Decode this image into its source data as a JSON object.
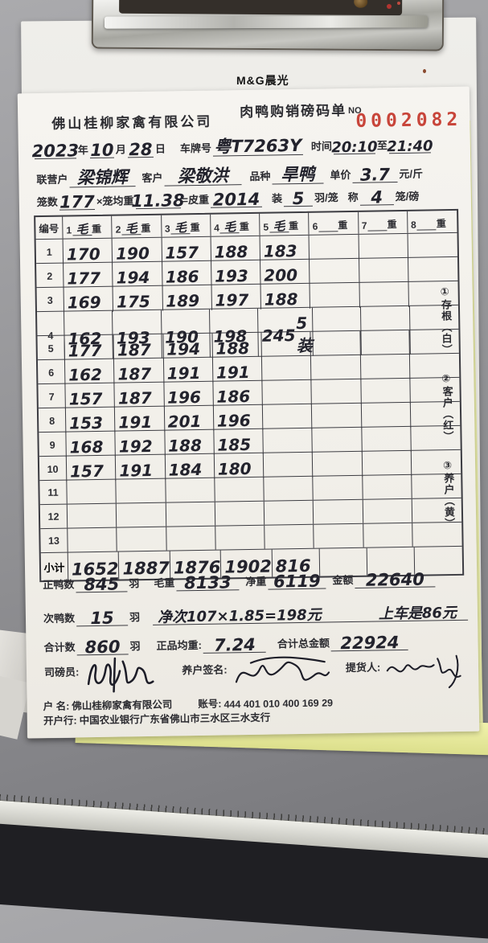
{
  "brand": {
    "text": "M&G晨光"
  },
  "header": {
    "company": "佛山桂柳家禽有限公司",
    "title": "肉鸭购销磅码单",
    "no_label": "NO",
    "serial": "0002082",
    "serial_color": "#c8453a"
  },
  "date": {
    "year": "2023",
    "year_label": "年",
    "month": "10",
    "month_label": "月",
    "day": "28",
    "day_label": "日",
    "plate_label": "车牌号",
    "plate": "粤T7263Y",
    "time_label": "时间",
    "time_from": "20:10",
    "to_label": "至",
    "time_to": "21:40"
  },
  "party": {
    "partner_label": "联营户",
    "partner": "梁锦辉",
    "customer_label": "客户",
    "customer": "梁敬洪",
    "breed_label": "品种",
    "breed": "旱鸭",
    "price_label": "单价",
    "price": "3.7",
    "price_unit": "元/斤"
  },
  "cage": {
    "cage_label": "笼数",
    "count": "177",
    "avg_label": "×笼均重",
    "avg": "11.38",
    "tare_label": "=皮重",
    "tare": "2014",
    "load_label": "装",
    "load": "5",
    "load_unit": "羽/笼",
    "weigh_label": "称",
    "weigh": "4",
    "weigh_unit": "笼/磅"
  },
  "table": {
    "corner": "编号",
    "columns": [
      {
        "no": "1",
        "fill": "毛",
        "suffix": "重"
      },
      {
        "no": "2",
        "fill": "毛",
        "suffix": "重"
      },
      {
        "no": "3",
        "fill": "毛",
        "suffix": "重"
      },
      {
        "no": "4",
        "fill": "毛",
        "suffix": "重"
      },
      {
        "no": "5",
        "fill": "毛",
        "suffix": "重"
      },
      {
        "no": "6",
        "fill": "",
        "suffix": "重"
      },
      {
        "no": "7",
        "fill": "",
        "suffix": "重"
      },
      {
        "no": "8",
        "fill": "",
        "suffix": "重"
      }
    ],
    "rows": [
      {
        "no": "1",
        "values": [
          "170",
          "190",
          "157",
          "188",
          "183",
          "",
          "",
          ""
        ]
      },
      {
        "no": "2",
        "values": [
          "177",
          "194",
          "186",
          "193",
          "200",
          "",
          "",
          ""
        ]
      },
      {
        "no": "3",
        "values": [
          "169",
          "175",
          "189",
          "197",
          "188",
          "",
          "",
          ""
        ]
      },
      {
        "no": "4",
        "values": [
          "162",
          "193",
          "190",
          "198",
          "245",
          "",
          "",
          ""
        ],
        "note": "5装",
        "note_col": 4
      },
      {
        "no": "5",
        "values": [
          "177",
          "187",
          "194",
          "188",
          "",
          "",
          "",
          ""
        ]
      },
      {
        "no": "6",
        "values": [
          "162",
          "187",
          "191",
          "191",
          "",
          "",
          "",
          ""
        ]
      },
      {
        "no": "7",
        "values": [
          "157",
          "187",
          "196",
          "186",
          "",
          "",
          "",
          ""
        ]
      },
      {
        "no": "8",
        "values": [
          "153",
          "191",
          "201",
          "196",
          "",
          "",
          "",
          ""
        ]
      },
      {
        "no": "9",
        "values": [
          "168",
          "192",
          "188",
          "185",
          "",
          "",
          "",
          ""
        ]
      },
      {
        "no": "10",
        "values": [
          "157",
          "191",
          "184",
          "180",
          "",
          "",
          "",
          ""
        ]
      },
      {
        "no": "11",
        "values": [
          "",
          "",
          "",
          "",
          "",
          "",
          "",
          ""
        ]
      },
      {
        "no": "12",
        "values": [
          "",
          "",
          "",
          "",
          "",
          "",
          "",
          ""
        ]
      },
      {
        "no": "13",
        "values": [
          "",
          "",
          "",
          "",
          "",
          "",
          "",
          ""
        ]
      }
    ],
    "subtotal_label": "小计",
    "subtotals": [
      "1652",
      "1887",
      "1876",
      "1902",
      "816",
      "",
      "",
      ""
    ]
  },
  "side_note": {
    "items": [
      "①存根（白）",
      "②客户（红）",
      "③养户（黄）"
    ]
  },
  "summary": {
    "good_label": "正鸭数",
    "good": "845",
    "good_unit": "羽",
    "gross_label": "毛重",
    "gross": "8133",
    "net_label": "净重",
    "net": "6119",
    "amount_label": "金额",
    "amount": "22640",
    "cull_label": "次鸭数",
    "cull": "15",
    "cull_unit": "羽",
    "cull_note": "净次107×1.85=198元",
    "cull_note2": "上车是86元",
    "total_label": "合计数",
    "total": "860",
    "total_unit": "羽",
    "avg_label": "正品均重:",
    "avg": "7.24",
    "grand_label": "合计总金额",
    "grand": "22924"
  },
  "sign": {
    "weigher_label": "司磅员:",
    "farmer_label": "养户签名:",
    "receiver_label": "提货人:"
  },
  "bank": {
    "name_label": "户  名:",
    "name": "佛山桂柳家禽有限公司",
    "no_label": "账号:",
    "no": "444 401 010 400 169 29",
    "bank_label": "开户行:",
    "bank": "中国农业银行广东省佛山市三水区三水支行"
  }
}
